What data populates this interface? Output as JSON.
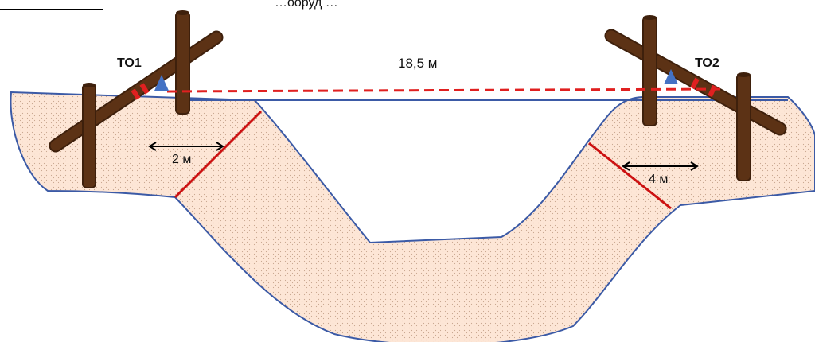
{
  "header_text": "…ооруд                                                       …",
  "distance_label": "18,5 м",
  "anchor_left_label": "ТО1",
  "anchor_right_label": "ТО2",
  "span_left_label": "2 м",
  "span_right_label": "4 м",
  "colors": {
    "ground_fill": "#fde6d6",
    "ground_stroke": "#3b5aa6",
    "log": "#5c3215",
    "log_dark": "#3e200c",
    "rope": "#e02020",
    "marker": "#4472c4",
    "boundary_line": "#cc1111"
  }
}
